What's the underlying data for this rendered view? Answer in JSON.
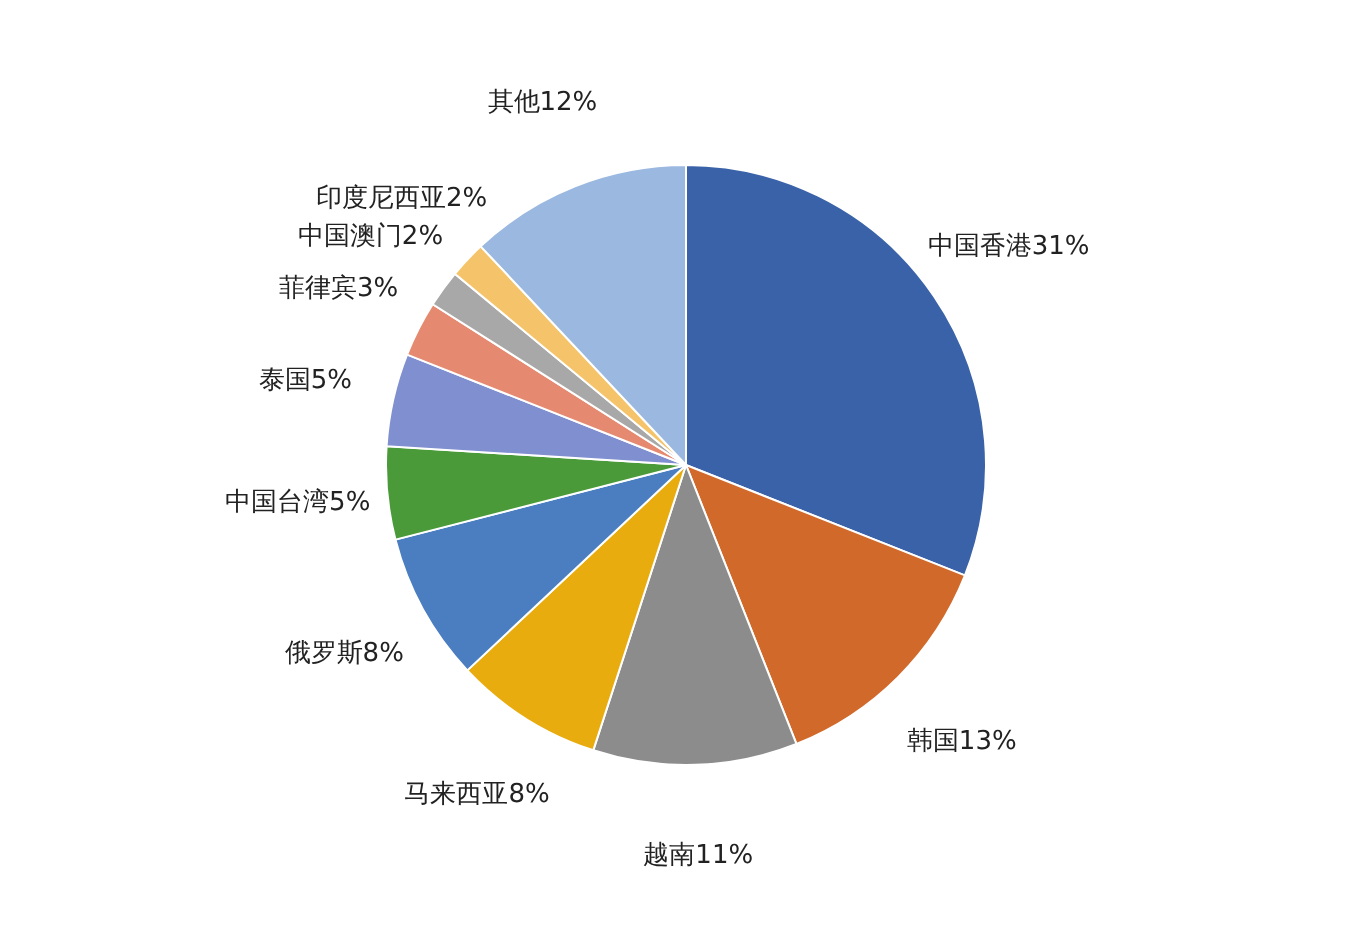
{
  "chart_data": {
    "type": "pie",
    "categories": [
      "中国香港",
      "韩国",
      "越南",
      "马来西亚",
      "俄罗斯",
      "中国台湾",
      "泰国",
      "菲律宾",
      "中国澳门",
      "印度尼西亚",
      "其他"
    ],
    "values": [
      31,
      13,
      11,
      8,
      8,
      5,
      5,
      3,
      2,
      2,
      12
    ],
    "value_labels": [
      "31%",
      "13%",
      "11%",
      "8%",
      "8%",
      "5%",
      "5%",
      "3%",
      "2%",
      "2%",
      "12%"
    ],
    "colors": [
      "#3a62a8",
      "#d0692a",
      "#8c8c8c",
      "#e8ac0e",
      "#4a7ec0",
      "#4a9a3a",
      "#7f8fd0",
      "#e58a70",
      "#a8a8a8",
      "#f5c46a",
      "#9ab8e0"
    ]
  }
}
